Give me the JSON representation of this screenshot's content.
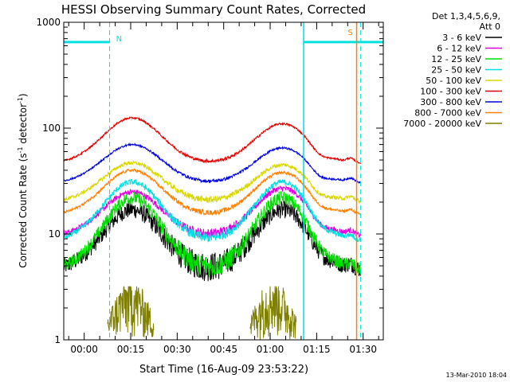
{
  "chart_data": {
    "type": "line",
    "title": "HESSI Observing Summary Count Rates, Corrected",
    "xlabel": "Start Time (16-Aug-09 23:53:22)",
    "ylabel": "Corrected Count Rate (s",
    "ylabel_sup1": "-1",
    "ylabel_mid": " detector",
    "ylabel_sup2": "-1",
    "ylabel_end": ")",
    "yscale": "log",
    "ylim": [
      1,
      1000
    ],
    "xlim_minutes_from_start": [
      -6.6,
      96.5
    ],
    "x_tick_labels": [
      "00:00",
      "00:15",
      "00:30",
      "00:45",
      "01:00",
      "01:15",
      "01:30"
    ],
    "y_tick_labels": [
      "1",
      "10",
      "100",
      "1000"
    ],
    "legend_header": [
      "Det 1,3,4,5,6,9,",
      "Att 0"
    ],
    "footer_date": "13-Mar-2010 18:04",
    "markers": {
      "night_label": "N",
      "saa_label": "S",
      "night_start_minutes": [
        8.2,
        70.8
      ],
      "night_bar_level": 650,
      "saa_minutes": [
        87.9,
        89.2
      ]
    },
    "series": [
      {
        "name": "3 - 6 keV",
        "color": "#000000",
        "peaks": [
          17,
          17
        ],
        "trough": 4.5,
        "noise": 0.18
      },
      {
        "name": "6 - 12 keV",
        "color": "#e000e0",
        "peaks": [
          25,
          27
        ],
        "trough": 9.5,
        "noise": 0.06
      },
      {
        "name": "12 - 25 keV",
        "color": "#00e000",
        "peaks": [
          22,
          22
        ],
        "trough": 4.5,
        "noise": 0.14
      },
      {
        "name": "25 - 50 keV",
        "color": "#00e0e0",
        "peaks": [
          31,
          31
        ],
        "trough": 8.5,
        "noise": 0.06
      },
      {
        "name": "50 - 100 keV",
        "color": "#d8d800",
        "peaks": [
          47,
          45
        ],
        "trough": 20,
        "noise": 0.04
      },
      {
        "name": "100 - 300 keV",
        "color": "#e00000",
        "peaks": [
          125,
          110
        ],
        "trough": 46,
        "noise": 0.02
      },
      {
        "name": "300 - 800 keV",
        "color": "#0000e0",
        "peaks": [
          70,
          65
        ],
        "trough": 30,
        "noise": 0.02
      },
      {
        "name": "800 - 7000 keV",
        "color": "#ff8000",
        "peaks": [
          40,
          38
        ],
        "trough": 15,
        "noise": 0.03
      },
      {
        "name": "7000 - 20000 keV",
        "color": "#808000",
        "peaks": [
          3.2,
          3.2
        ],
        "trough": 1,
        "noise": 0.1
      }
    ]
  }
}
